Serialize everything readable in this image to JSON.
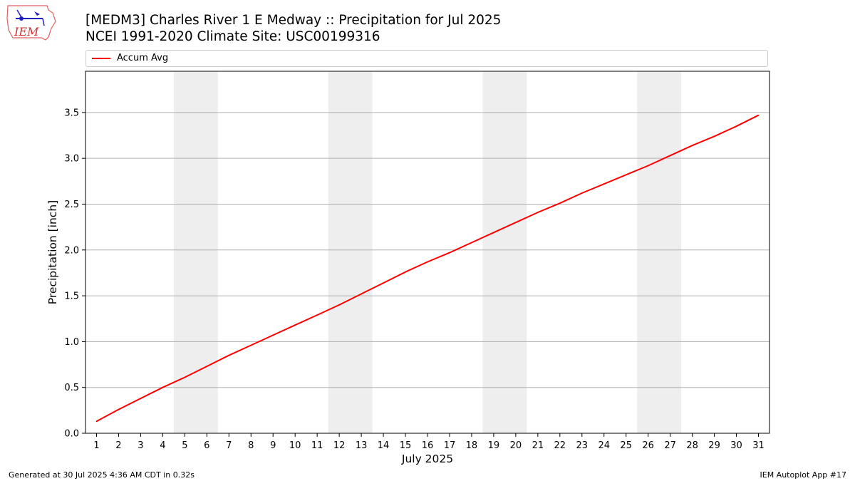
{
  "header": {
    "title_line1": "[MEDM3] Charles River 1 E Medway :: Precipitation for Jul 2025",
    "title_line2": "NCEI 1991-2020 Climate Site: USC00199316"
  },
  "logo": {
    "text": "IEM",
    "icon": "iem-logo-icon"
  },
  "footer": {
    "left": "Generated at 30 Jul 2025 4:36 AM CDT in 0.32s",
    "right": "IEM Autoplot App #17"
  },
  "colors": {
    "series": "#ff0000",
    "weekend_band": "#eeeeee",
    "grid": "#b0b0b0"
  },
  "chart_data": {
    "type": "line",
    "xlabel": "July 2025",
    "ylabel": "Precipitation [inch]",
    "xlim": [
      0.5,
      31.5
    ],
    "ylim": [
      0,
      3.95
    ],
    "yticks": [
      0.0,
      0.5,
      1.0,
      1.5,
      2.0,
      2.5,
      3.0,
      3.5
    ],
    "ytick_labels": [
      "0.0",
      "0.5",
      "1.0",
      "1.5",
      "2.0",
      "2.5",
      "3.0",
      "3.5"
    ],
    "xticks": [
      1,
      2,
      3,
      4,
      5,
      6,
      7,
      8,
      9,
      10,
      11,
      12,
      13,
      14,
      15,
      16,
      17,
      18,
      19,
      20,
      21,
      22,
      23,
      24,
      25,
      26,
      27,
      28,
      29,
      30,
      31
    ],
    "grid": "horizontal",
    "legend_position": "top",
    "shaded_spans": [
      [
        4.5,
        6.5
      ],
      [
        11.5,
        13.5
      ],
      [
        18.5,
        20.5
      ],
      [
        25.5,
        27.5
      ]
    ],
    "series": [
      {
        "name": "Accum Avg",
        "x": [
          1,
          2,
          3,
          4,
          5,
          6,
          7,
          8,
          9,
          10,
          11,
          12,
          13,
          14,
          15,
          16,
          17,
          18,
          19,
          20,
          21,
          22,
          23,
          24,
          25,
          26,
          27,
          28,
          29,
          30,
          31
        ],
        "values": [
          0.13,
          0.26,
          0.38,
          0.5,
          0.61,
          0.73,
          0.85,
          0.96,
          1.07,
          1.18,
          1.29,
          1.4,
          1.52,
          1.64,
          1.76,
          1.87,
          1.97,
          2.08,
          2.19,
          2.3,
          2.41,
          2.51,
          2.62,
          2.72,
          2.82,
          2.92,
          3.03,
          3.14,
          3.24,
          3.35,
          3.47
        ]
      }
    ]
  }
}
